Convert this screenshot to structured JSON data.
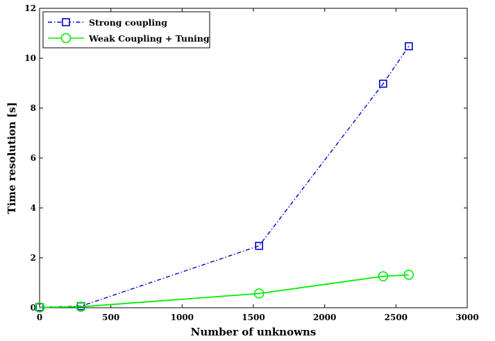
{
  "chart_data": {
    "type": "line",
    "xlabel": "Number of unknowns",
    "ylabel": "Time resolution [s]",
    "xlim": [
      0,
      3000
    ],
    "ylim": [
      0,
      12
    ],
    "xticks": [
      0,
      500,
      1000,
      1500,
      2000,
      2500,
      3000
    ],
    "yticks": [
      0,
      2,
      4,
      6,
      8,
      10,
      12
    ],
    "grid": false,
    "legend_position": "top-left",
    "series": [
      {
        "name": "Strong coupling",
        "color": "#0000cc",
        "line_style": "dash-dot",
        "marker": "square",
        "x": [
          0,
          290,
          1540,
          2410,
          2590
        ],
        "y": [
          0.02,
          0.06,
          2.48,
          8.98,
          10.48
        ]
      },
      {
        "name": "Weak Coupling + Tuning",
        "color": "#00ee00",
        "line_style": "solid",
        "marker": "circle",
        "x": [
          0,
          290,
          1540,
          2410,
          2590
        ],
        "y": [
          0.01,
          0.04,
          0.57,
          1.26,
          1.32
        ]
      }
    ]
  }
}
